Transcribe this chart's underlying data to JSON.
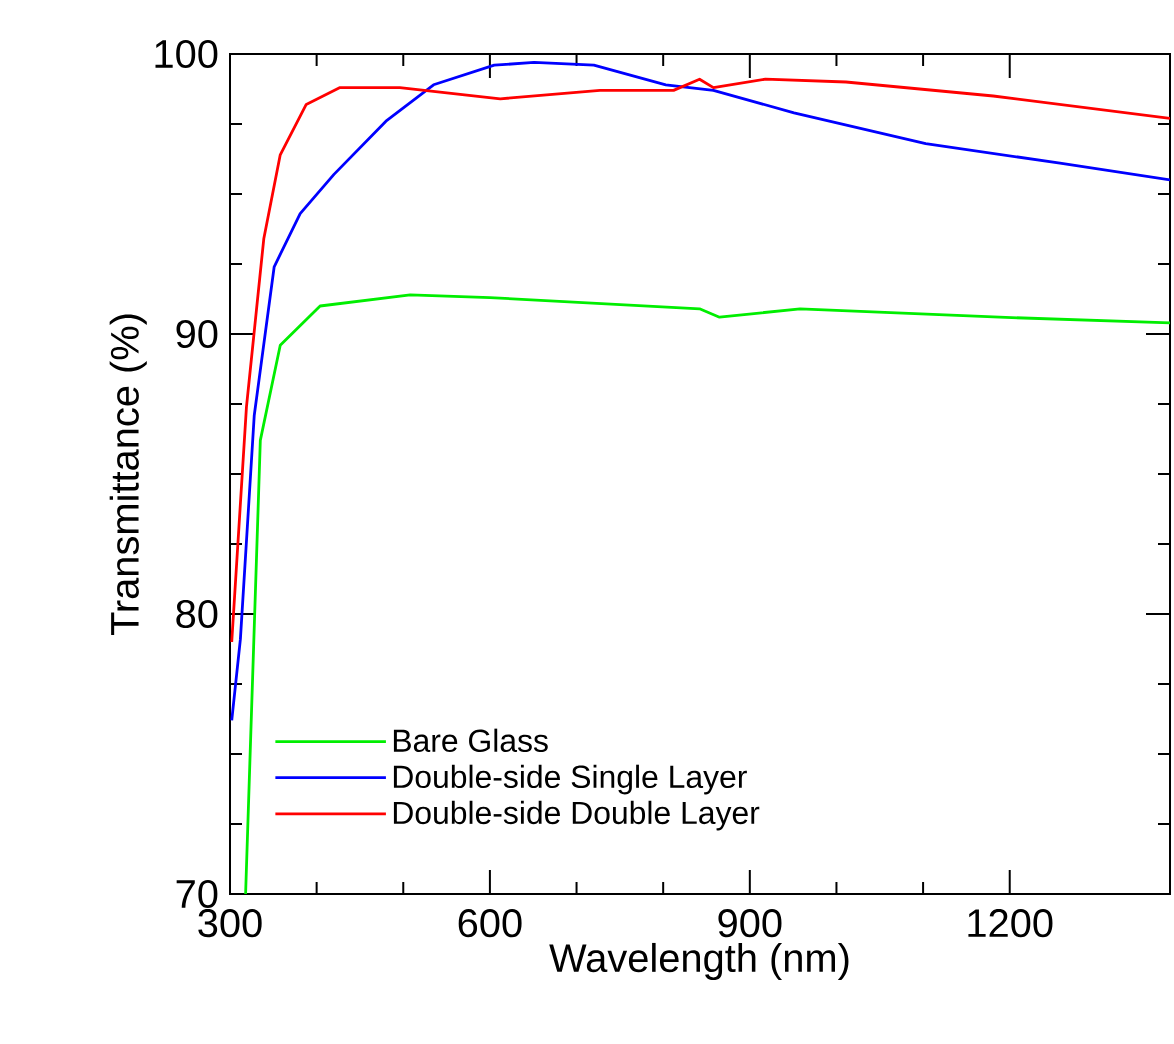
{
  "chart_data": {
    "type": "line",
    "xlabel": "Wavelength (nm)",
    "ylabel": "Transmittance (%)",
    "xlim": [
      300,
      1385
    ],
    "ylim": [
      70,
      100
    ],
    "xticks": [
      300,
      600,
      900,
      1200
    ],
    "yticks": [
      70,
      80,
      90,
      100
    ],
    "legend": "bottom left",
    "grid": false,
    "marker": "none",
    "line_style": "solid",
    "series": [
      {
        "name": "Bare Glass",
        "color": "#00ee00",
        "x": [
          318,
          335,
          358,
          404,
          508,
          600,
          842,
          865,
          958,
          1188,
          1385
        ],
        "values": [
          70,
          86.2,
          89.6,
          91.0,
          91.4,
          91.3,
          90.9,
          90.6,
          90.9,
          90.6,
          90.4
        ]
      },
      {
        "name": "Double-side Single Layer",
        "color": "#0000ff",
        "x": [
          302,
          312,
          328,
          351,
          381,
          420,
          480,
          535,
          605,
          651,
          720,
          803,
          858,
          951,
          1103,
          1258,
          1385
        ],
        "values": [
          76.2,
          79.1,
          87.1,
          92.4,
          94.3,
          95.7,
          97.6,
          98.9,
          99.6,
          99.7,
          99.6,
          98.9,
          98.7,
          97.9,
          96.8,
          96.1,
          95.5
        ]
      },
      {
        "name": "Double-side Double Layer",
        "color": "#ff0000",
        "x": [
          302,
          319,
          339,
          358,
          388,
          427,
          496,
          612,
          727,
          812,
          842,
          858,
          918,
          1011,
          1181,
          1385
        ],
        "values": [
          79.0,
          87.4,
          93.4,
          96.4,
          98.2,
          98.8,
          98.8,
          98.4,
          98.7,
          98.7,
          99.1,
          98.8,
          99.1,
          99.0,
          98.5,
          97.7
        ]
      }
    ]
  }
}
